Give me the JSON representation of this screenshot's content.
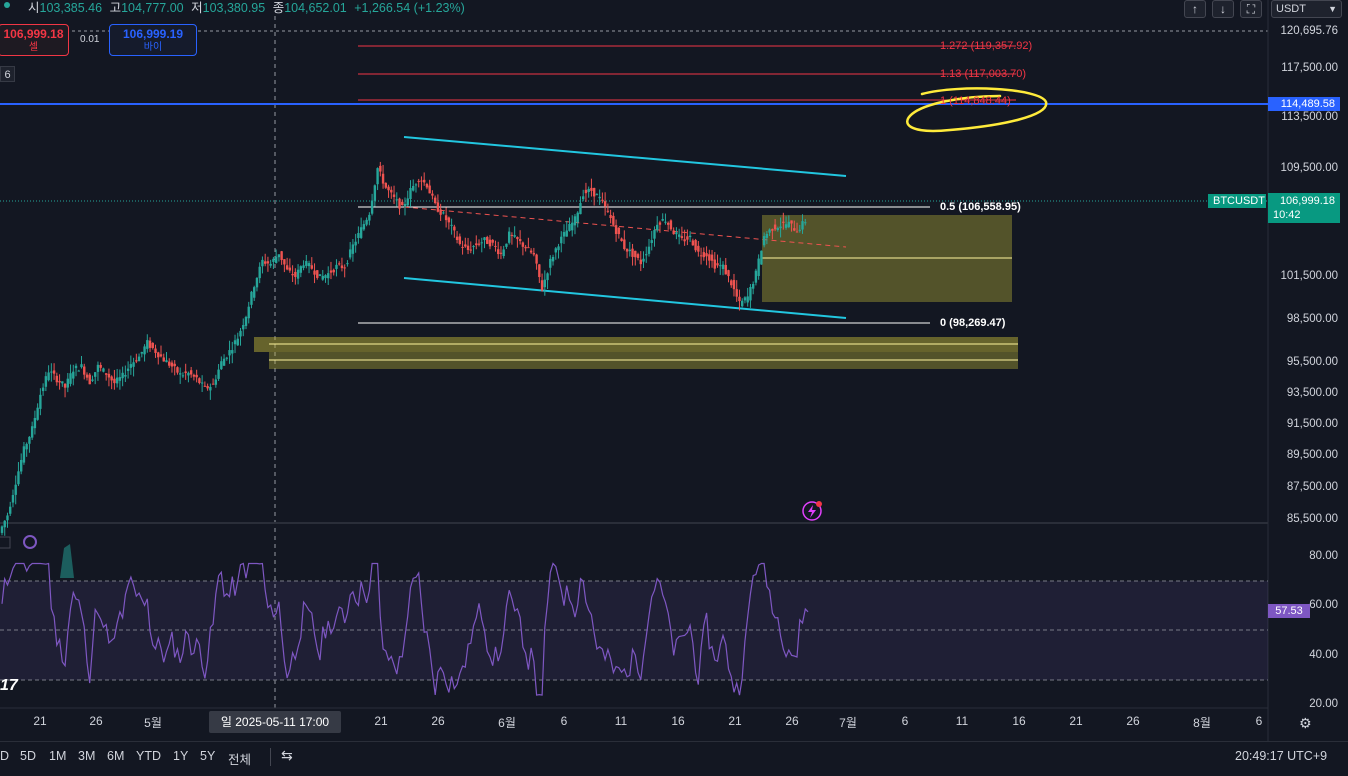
{
  "ohlc": {
    "open_label": "시",
    "open": "103,385.46",
    "high_label": "고",
    "high": "104,777.00",
    "low_label": "저",
    "low": "103,380.95",
    "close_label": "종",
    "close": "104,652.01",
    "change": "+1,266.54 (+1.23%)"
  },
  "trade": {
    "sell_price": "106,999.18",
    "sell_label": "셀",
    "spread": "0.01",
    "buy_price": "106,999.19",
    "buy_label": "바이",
    "lot": "6"
  },
  "toolbar": {
    "up_icon": "↑",
    "down_icon": "↓",
    "fullscreen_icon": "⛶",
    "currency": "USDT"
  },
  "price_axis": {
    "labels": [
      "120,695.76",
      "117,500.00",
      "113,500.00",
      "109,500.00",
      "101,500.00",
      "98,500.00",
      "95,500.00",
      "93,500.00",
      "91,500.00",
      "89,500.00",
      "87,500.00",
      "85,500.00"
    ],
    "blue_line_price": "114,489.58",
    "symbol": "BTCUSDT",
    "last_price": "106,999.18",
    "countdown": "10:42"
  },
  "fib": {
    "l1272": "1.272 (119,357.92)",
    "l113": "1.13 (117,003.70)",
    "l1": "1 (114,848.44)",
    "l05": "0.5 (106,558.95)",
    "l0": "0 (98,269.47)"
  },
  "rsi": {
    "labels": [
      "80.00",
      "60.00",
      "40.00",
      "20.00"
    ],
    "value": "57.53",
    "indicator_text": "17"
  },
  "time_axis": {
    "labels": [
      "21",
      "26",
      "5월",
      "21",
      "26",
      "6월",
      "6",
      "11",
      "16",
      "21",
      "26",
      "7월",
      "6",
      "11",
      "16",
      "21",
      "26",
      "8월",
      "6"
    ],
    "crosshair_label": "일 2025-05-11   17:00"
  },
  "ranges": [
    "D",
    "5D",
    "1M",
    "3M",
    "6M",
    "YTD",
    "1Y",
    "5Y",
    "전체"
  ],
  "clock": "20:49:17 UTC+9",
  "colors": {
    "background": "#131722",
    "up": "#26a69a",
    "down": "#ef5350",
    "channel": "#22c7e0",
    "fib_red": "#f23645",
    "blue_line": "#2962ff",
    "zone": "#ccc23a",
    "rsi": "#7e57c2",
    "annotation": "#ffeb3b"
  },
  "chart_data": {
    "type": "candlestick",
    "symbol": "BTCUSDT",
    "last_price": 106999.18,
    "horizontal_line": 114489.58,
    "fib_levels": [
      {
        "ratio": 1.272,
        "price": 119357.92
      },
      {
        "ratio": 1.13,
        "price": 117003.7
      },
      {
        "ratio": 1,
        "price": 114848.44
      },
      {
        "ratio": 0.5,
        "price": 106558.95
      },
      {
        "ratio": 0,
        "price": 98269.47
      }
    ],
    "price_close_path": [
      84500,
      85800,
      88200,
      90500,
      92000,
      94500,
      96200,
      95600,
      95000,
      96300,
      96500,
      95400,
      96500,
      96000,
      95300,
      95800,
      96700,
      97200,
      98200,
      97600,
      97000,
      96500,
      95900,
      96000,
      95600,
      94900,
      95200,
      96800,
      97600,
      98600,
      100200,
      102400,
      104100,
      103900,
      104700,
      103400,
      103000,
      104000,
      103600,
      102900,
      103200,
      103700,
      103700,
      105200,
      106400,
      107600,
      110800,
      109400,
      108600,
      107900,
      109200,
      110100,
      109600,
      108100,
      107400,
      106500,
      105300,
      104900,
      105300,
      105600,
      105300,
      104600,
      106000,
      105600,
      105100,
      104500,
      102100,
      104100,
      105400,
      106300,
      107100,
      109000,
      109200,
      108600,
      107600,
      106300,
      105100,
      104600,
      104000,
      105200,
      106900,
      107100,
      106200,
      105600,
      105800,
      104700,
      104600,
      103800,
      103700,
      102500,
      101000,
      101500,
      103200,
      105900,
      106500,
      106700,
      106800,
      106300,
      106999
    ],
    "rsi_value": 57.53,
    "rsi_levels": [
      70,
      50,
      30
    ]
  }
}
